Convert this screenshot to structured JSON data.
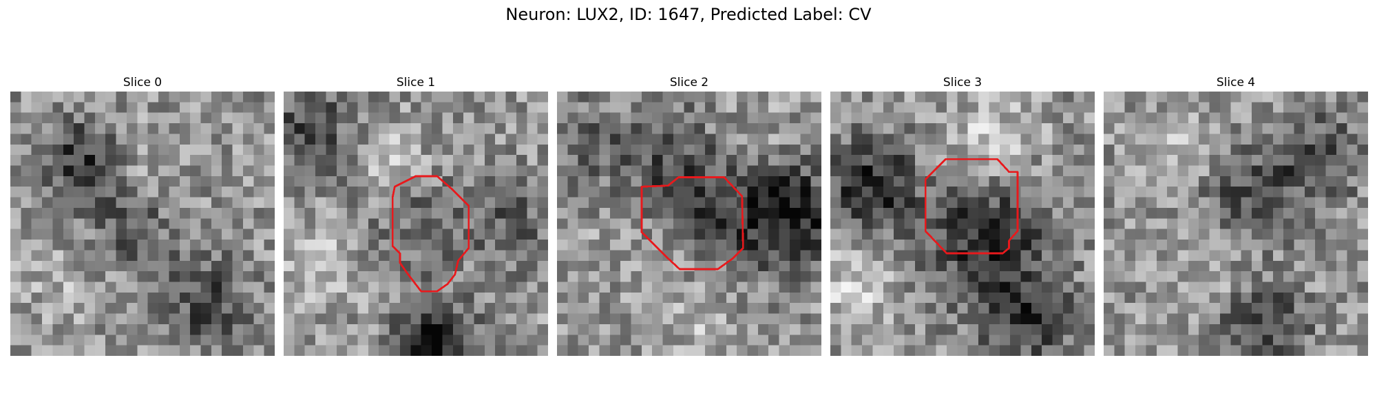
{
  "figure": {
    "title": "Neuron: LUX2, ID: 1647, Predicted Label: CV"
  },
  "roi_color": "#e8191c",
  "panels": [
    {
      "title": "Slice 0",
      "seed": 11,
      "has_roi": false,
      "field": [
        [
          0.25,
          0.25,
          -0.35,
          3.5
        ],
        [
          0.75,
          0.8,
          -0.3,
          3
        ],
        [
          0.45,
          0.5,
          -0.25,
          3
        ],
        [
          0.55,
          0.3,
          0.12,
          4
        ],
        [
          0.2,
          0.7,
          0.1,
          3
        ]
      ]
    },
    {
      "title": "Slice 1",
      "seed": 23,
      "has_roi": true,
      "field": [
        [
          0.5,
          0.5,
          -0.15,
          2.5
        ],
        [
          0.58,
          0.95,
          -0.55,
          3.5
        ],
        [
          0.1,
          0.15,
          -0.3,
          3
        ],
        [
          0.85,
          0.5,
          -0.2,
          3
        ],
        [
          0.4,
          0.25,
          0.2,
          4
        ],
        [
          0.15,
          0.65,
          0.15,
          3
        ]
      ]
    },
    {
      "title": "Slice 2",
      "seed": 37,
      "has_roi": true,
      "field": [
        [
          0.87,
          0.47,
          -0.5,
          2.5
        ],
        [
          0.5,
          0.35,
          -0.4,
          2
        ],
        [
          0.1,
          0.2,
          -0.2,
          3
        ],
        [
          0.35,
          0.5,
          0.15,
          2.5
        ],
        [
          0.7,
          0.22,
          0.2,
          3
        ],
        [
          0.5,
          0.85,
          0.15,
          4
        ]
      ]
    },
    {
      "title": "Slice 3",
      "seed": 51,
      "has_roi": true,
      "field": [
        [
          0.15,
          0.35,
          -0.45,
          3
        ],
        [
          0.6,
          0.55,
          -0.4,
          2
        ],
        [
          0.75,
          0.87,
          -0.35,
          3
        ],
        [
          0.6,
          0.2,
          0.25,
          3
        ],
        [
          0.1,
          0.75,
          0.2,
          3
        ],
        [
          0.9,
          0.45,
          0.05,
          3
        ]
      ]
    },
    {
      "title": "Slice 4",
      "seed": 67,
      "has_roi": false,
      "field": [
        [
          0.55,
          0.4,
          -0.3,
          3
        ],
        [
          0.8,
          0.25,
          -0.3,
          3
        ],
        [
          0.6,
          0.9,
          -0.35,
          3
        ],
        [
          0.4,
          0.7,
          0.1,
          3
        ],
        [
          0.3,
          0.2,
          0.12,
          3
        ]
      ]
    }
  ]
}
